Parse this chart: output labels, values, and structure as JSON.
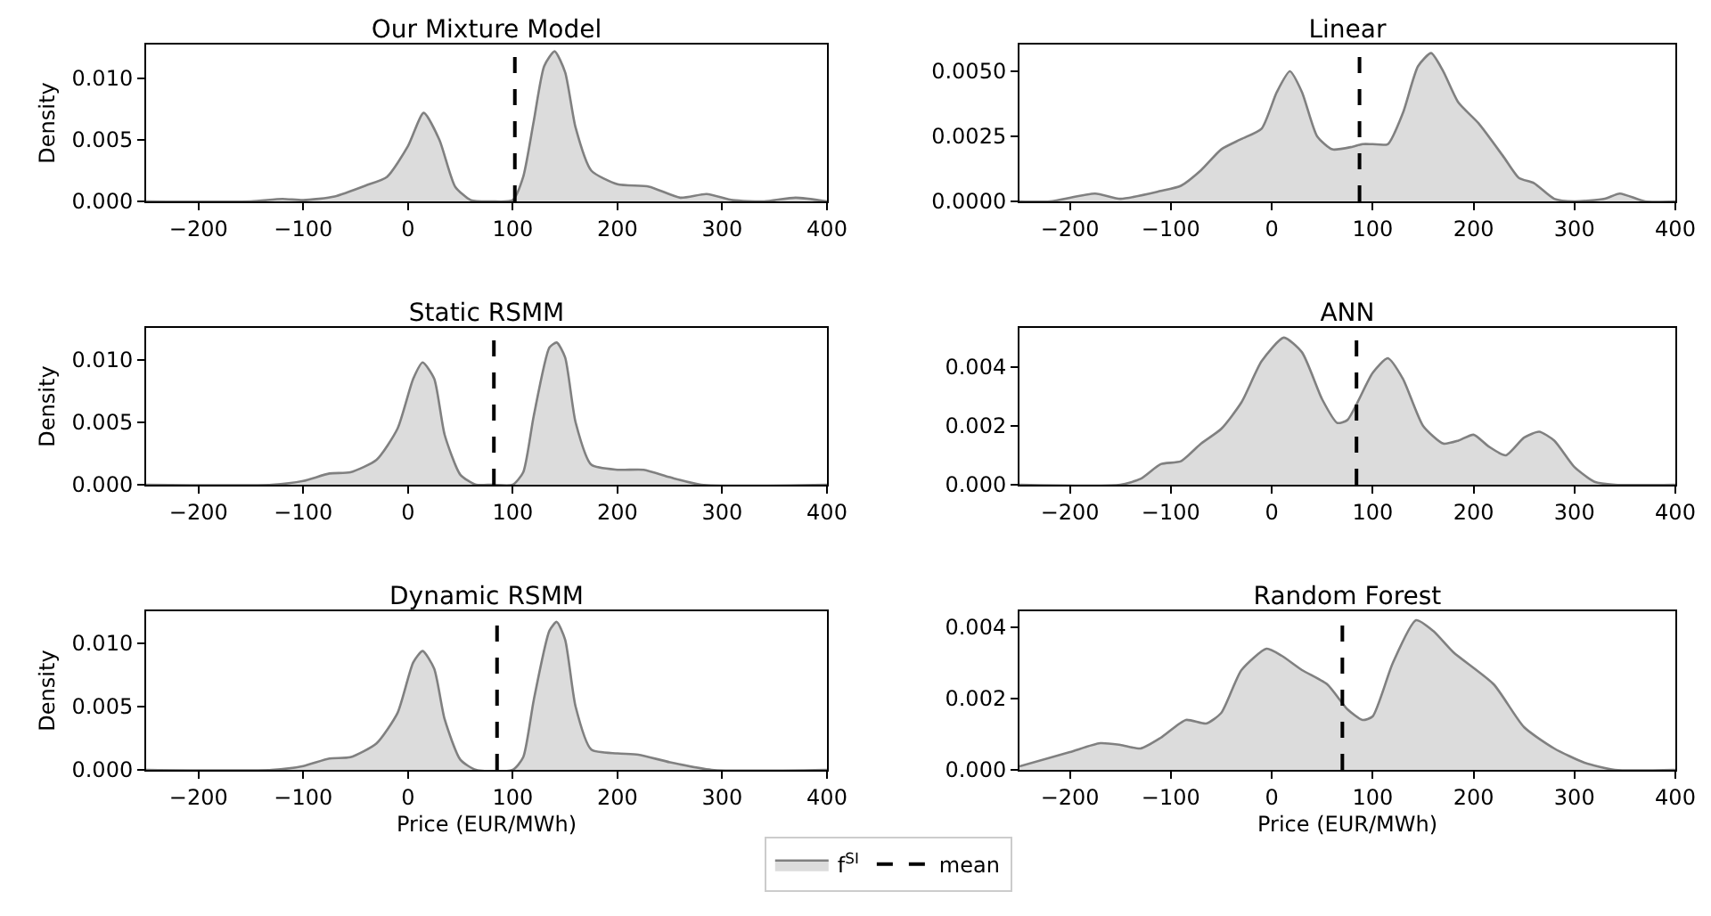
{
  "chart_data": [
    {
      "type": "area",
      "title": "Our Mixture Model",
      "ylabel": "Density",
      "xlim": [
        -250,
        400
      ],
      "ylim": [
        0,
        0.01275
      ],
      "xticks": [
        -200,
        -100,
        0,
        100,
        200,
        300,
        400
      ],
      "yticks": [
        {
          "value": 0,
          "label": "0.000"
        },
        {
          "value": 0.005,
          "label": "0.005"
        },
        {
          "value": 0.01,
          "label": "0.010"
        }
      ],
      "series": [
        {
          "color": "#dcdcdc",
          "x": [
            -250,
            -150,
            -120,
            -100,
            -70,
            -40,
            -20,
            0,
            15,
            30,
            45,
            60,
            80,
            100,
            110,
            120,
            130,
            140,
            150,
            160,
            175,
            200,
            230,
            260,
            285,
            310,
            340,
            370,
            400
          ],
          "values": [
            0,
            0,
            0.0002,
            0.0001,
            0.0004,
            0.0013,
            0.002,
            0.0045,
            0.0072,
            0.005,
            0.0012,
            0.0001,
            0,
            0.0001,
            0.002,
            0.0065,
            0.011,
            0.0122,
            0.0105,
            0.006,
            0.0025,
            0.0014,
            0.0012,
            0.0003,
            0.0006,
            0.0001,
            0,
            0.0003,
            0
          ]
        }
      ],
      "ref_lines": [
        {
          "axis": "x",
          "value": 102,
          "color": "#000000",
          "line_style": "dashed"
        }
      ]
    },
    {
      "type": "area",
      "title": "Linear",
      "xlim": [
        -250,
        400
      ],
      "ylim": [
        0,
        0.00603
      ],
      "xticks": [
        -200,
        -100,
        0,
        100,
        200,
        300,
        400
      ],
      "yticks": [
        {
          "value": 0,
          "label": "0.0000"
        },
        {
          "value": 0.0025,
          "label": "0.0025"
        },
        {
          "value": 0.005,
          "label": "0.0050"
        }
      ],
      "series": [
        {
          "color": "#dcdcdc",
          "x": [
            -250,
            -220,
            -175,
            -150,
            -110,
            -90,
            -70,
            -50,
            -30,
            -10,
            5,
            18,
            30,
            45,
            60,
            80,
            90,
            100,
            115,
            130,
            145,
            158,
            170,
            185,
            205,
            230,
            245,
            260,
            280,
            300,
            330,
            345,
            370,
            400
          ],
          "values": [
            0,
            0,
            0.0003,
            0.0001,
            0.0004,
            0.0006,
            0.0012,
            0.002,
            0.0024,
            0.0028,
            0.0042,
            0.005,
            0.0042,
            0.0025,
            0.002,
            0.0021,
            0.0022,
            0.0022,
            0.0022,
            0.0034,
            0.0052,
            0.0057,
            0.005,
            0.0038,
            0.003,
            0.0017,
            0.0009,
            0.0007,
            0.0001,
            0,
            0.0001,
            0.0003,
            0,
            0
          ]
        }
      ],
      "ref_lines": [
        {
          "axis": "x",
          "value": 87,
          "color": "#000000",
          "line_style": "dashed"
        }
      ]
    },
    {
      "type": "area",
      "title": "Static RSMM",
      "ylabel": "Density",
      "xlim": [
        -250,
        400
      ],
      "ylim": [
        0,
        0.01257
      ],
      "xticks": [
        -200,
        -100,
        0,
        100,
        200,
        300,
        400
      ],
      "yticks": [
        {
          "value": 0,
          "label": "0.000"
        },
        {
          "value": 0.005,
          "label": "0.005"
        },
        {
          "value": 0.01,
          "label": "0.010"
        }
      ],
      "series": [
        {
          "color": "#dcdcdc",
          "x": [
            -250,
            -130,
            -100,
            -75,
            -55,
            -30,
            -10,
            5,
            14,
            25,
            35,
            50,
            65,
            80,
            100,
            110,
            120,
            135,
            142,
            150,
            160,
            175,
            200,
            225,
            250,
            280,
            400
          ],
          "values": [
            0,
            0,
            0.0003,
            0.0009,
            0.001,
            0.002,
            0.0045,
            0.0085,
            0.0098,
            0.0085,
            0.004,
            0.0008,
            0,
            0,
            0,
            0.001,
            0.0055,
            0.011,
            0.0114,
            0.0102,
            0.005,
            0.0016,
            0.0012,
            0.0012,
            0.0006,
            0,
            0
          ]
        }
      ],
      "ref_lines": [
        {
          "axis": "x",
          "value": 82,
          "color": "#000000",
          "line_style": "dashed"
        }
      ]
    },
    {
      "type": "area",
      "title": "ANN",
      "xlim": [
        -250,
        400
      ],
      "ylim": [
        0,
        0.00533
      ],
      "xticks": [
        -200,
        -100,
        0,
        100,
        200,
        300,
        400
      ],
      "yticks": [
        {
          "value": 0,
          "label": "0.000"
        },
        {
          "value": 0.002,
          "label": "0.002"
        },
        {
          "value": 0.004,
          "label": "0.004"
        }
      ],
      "series": [
        {
          "color": "#dcdcdc",
          "x": [
            -250,
            -150,
            -130,
            -110,
            -90,
            -70,
            -50,
            -30,
            -10,
            12,
            30,
            50,
            65,
            75,
            85,
            100,
            115,
            130,
            150,
            170,
            185,
            200,
            215,
            232,
            250,
            265,
            280,
            300,
            320,
            340,
            400
          ],
          "values": [
            0,
            0,
            0.0002,
            0.0007,
            0.0008,
            0.0014,
            0.0019,
            0.0028,
            0.0042,
            0.005,
            0.0045,
            0.0029,
            0.0021,
            0.0022,
            0.0028,
            0.0038,
            0.0043,
            0.0036,
            0.002,
            0.0014,
            0.0015,
            0.0017,
            0.0013,
            0.001,
            0.0016,
            0.0018,
            0.0015,
            0.0006,
            0.0001,
            0,
            0
          ]
        }
      ],
      "ref_lines": [
        {
          "axis": "x",
          "value": 84,
          "color": "#000000",
          "line_style": "dashed"
        }
      ]
    },
    {
      "type": "area",
      "title": "Dynamic RSMM",
      "xlabel": "Price (EUR/MWh)",
      "ylabel": "Density",
      "xlim": [
        -250,
        400
      ],
      "ylim": [
        0,
        0.01254
      ],
      "xticks": [
        -200,
        -100,
        0,
        100,
        200,
        300,
        400
      ],
      "yticks": [
        {
          "value": 0,
          "label": "0.000"
        },
        {
          "value": 0.005,
          "label": "0.005"
        },
        {
          "value": 0.01,
          "label": "0.010"
        }
      ],
      "series": [
        {
          "color": "#dcdcdc",
          "x": [
            -250,
            -130,
            -100,
            -75,
            -55,
            -30,
            -10,
            5,
            14,
            25,
            35,
            50,
            65,
            100,
            110,
            120,
            135,
            142,
            150,
            160,
            175,
            200,
            220,
            250,
            290,
            400
          ],
          "values": [
            0,
            0,
            0.0003,
            0.0009,
            0.001,
            0.0021,
            0.0045,
            0.0085,
            0.0094,
            0.008,
            0.004,
            0.0008,
            0,
            0,
            0.001,
            0.0055,
            0.011,
            0.0117,
            0.0103,
            0.005,
            0.0016,
            0.0013,
            0.0012,
            0.0006,
            0,
            0
          ]
        }
      ],
      "ref_lines": [
        {
          "axis": "x",
          "value": 85,
          "color": "#000000",
          "line_style": "dashed"
        }
      ]
    },
    {
      "type": "area",
      "title": "Random Forest",
      "xlabel": "Price (EUR/MWh)",
      "xlim": [
        -250,
        400
      ],
      "ylim": [
        0,
        0.00445
      ],
      "xticks": [
        -200,
        -100,
        0,
        100,
        200,
        300,
        400
      ],
      "yticks": [
        {
          "value": 0,
          "label": "0.000"
        },
        {
          "value": 0.002,
          "label": "0.002"
        },
        {
          "value": 0.004,
          "label": "0.004"
        }
      ],
      "legend": "bottom",
      "series": [
        {
          "name": "f$^{SI}$",
          "color": "#dcdcdc",
          "x": [
            -250,
            -200,
            -170,
            -150,
            -130,
            -110,
            -85,
            -65,
            -50,
            -30,
            -5,
            10,
            30,
            55,
            75,
            90,
            100,
            120,
            143,
            160,
            180,
            220,
            250,
            280,
            310,
            340,
            400
          ],
          "values": [
            0.0001,
            0.0005,
            0.00075,
            0.0007,
            0.0006,
            0.0009,
            0.0014,
            0.0013,
            0.0016,
            0.0028,
            0.0034,
            0.0032,
            0.0028,
            0.0024,
            0.0017,
            0.0014,
            0.0015,
            0.003,
            0.0042,
            0.0039,
            0.0033,
            0.0024,
            0.0012,
            0.0006,
            0.0002,
            0,
            0
          ]
        }
      ],
      "ref_lines": [
        {
          "axis": "x",
          "value": 70,
          "label": "mean",
          "color": "#000000",
          "line_style": "dashed"
        }
      ]
    }
  ]
}
